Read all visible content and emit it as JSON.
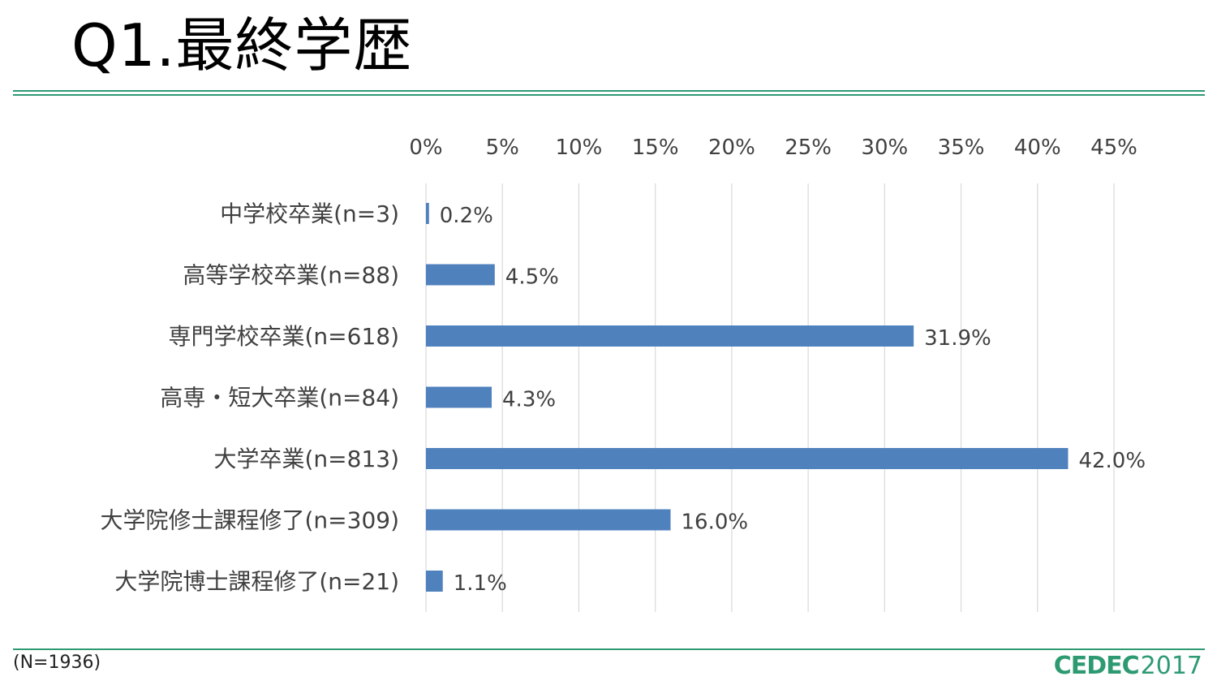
{
  "slide": {
    "title": "Q1.最終学歴",
    "footnote": "(N=1936)",
    "logo_mark": "CEDEC",
    "logo_year": "2017",
    "accent_color": "#2e9a72"
  },
  "chart_data": {
    "type": "bar",
    "orientation": "horizontal",
    "categories": [
      "中学校卒業(n=3)",
      "高等学校卒業(n=88)",
      "専門学校卒業(n=618)",
      "高専・短大卒業(n=84)",
      "大学卒業(n=813)",
      "大学院修士課程修了(n=309)",
      "大学院博士課程修了(n=21)"
    ],
    "values": [
      0.2,
      4.5,
      31.9,
      4.3,
      42.0,
      16.0,
      1.1
    ],
    "value_labels": [
      "0.2%",
      "4.5%",
      "31.9%",
      "4.3%",
      "42.0%",
      "16.0%",
      "1.1%"
    ],
    "xlim": [
      0,
      45
    ],
    "x_ticks": [
      0,
      5,
      10,
      15,
      20,
      25,
      30,
      35,
      40,
      45
    ],
    "x_tick_labels": [
      "0%",
      "5%",
      "10%",
      "15%",
      "20%",
      "25%",
      "30%",
      "35%",
      "40%",
      "45%"
    ],
    "x_axis_position": "top",
    "grid": true,
    "bar_color": "#4f81bd",
    "grid_color": "#d9d9d9"
  }
}
